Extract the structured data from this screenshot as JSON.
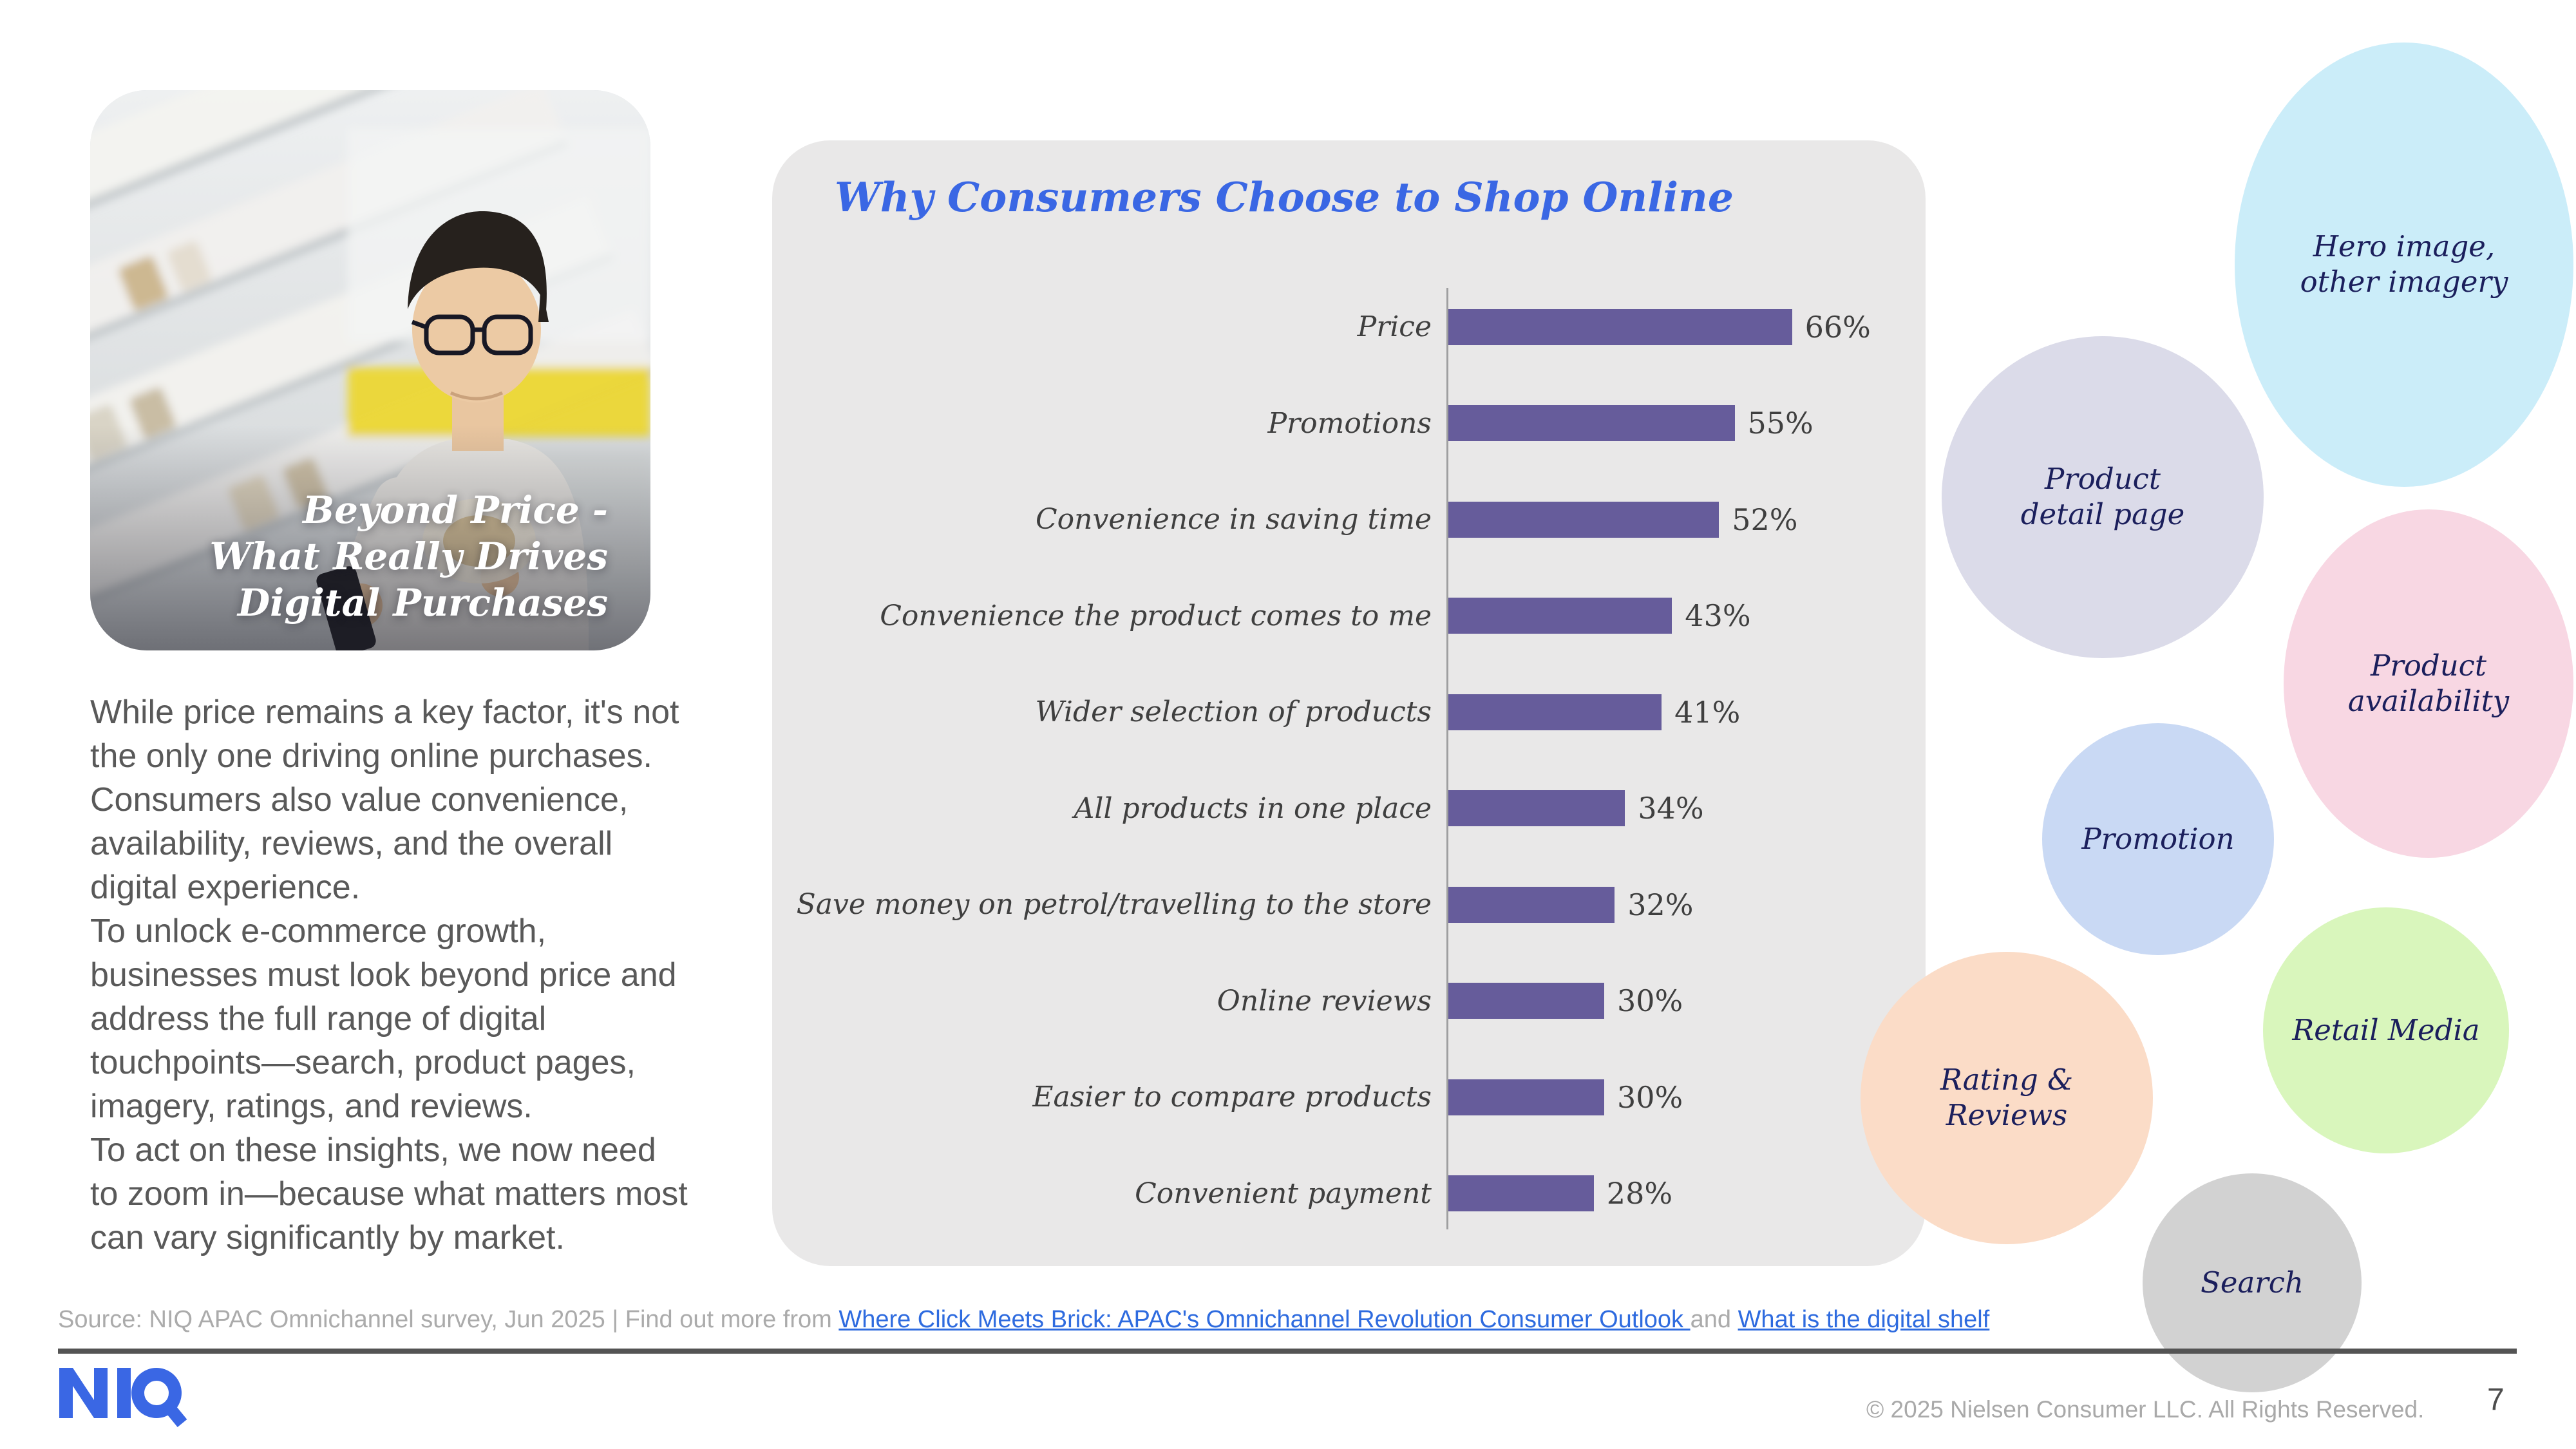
{
  "hero": {
    "title": "Beyond Price -\nWhat Really Drives\nDigital Purchases"
  },
  "intro": {
    "paragraphs": [
      "While price remains a key factor, it's not the only one driving online purchases. Consumers also value convenience, availability, reviews, and the overall digital experience.",
      "To unlock e-commerce growth, businesses must look beyond price and address the full range of digital touchpoints—search, product pages, imagery, ratings, and reviews.",
      "To act on these insights, we now need to zoom in—because what matters most can vary significantly by market."
    ]
  },
  "chart_data": {
    "type": "bar",
    "orientation": "horizontal",
    "title": "Why Consumers Choose to Shop Online",
    "title_color": "#3A67E4",
    "panel_color": "#E9E8E8",
    "bar_color": "#665C9B",
    "unit": "%",
    "xlim": [
      0,
      70
    ],
    "grid": false,
    "legend": false,
    "categories": [
      "Price",
      "Promotions",
      "Convenience in saving time",
      "Convenience the product comes to me",
      "Wider selection of products",
      "All products in one place",
      "Save money on petrol/travelling to the store",
      "Online reviews",
      "Easier to compare products",
      "Convenient payment"
    ],
    "values": [
      66,
      55,
      52,
      43,
      41,
      34,
      32,
      30,
      30,
      28
    ],
    "value_labels": [
      "66%",
      "55%",
      "52%",
      "43%",
      "41%",
      "34%",
      "32%",
      "30%",
      "30%",
      "28%"
    ]
  },
  "bubbles": [
    {
      "name": "hero-imagery",
      "label": "Hero image,\nother imagery",
      "color": "#CBEDF9"
    },
    {
      "name": "product-detail-page",
      "label": "Product\ndetail page",
      "color": "#DBDBE9"
    },
    {
      "name": "product-availability",
      "label": "Product\navailability",
      "color": "#F8D7E3"
    },
    {
      "name": "promotion",
      "label": "Promotion",
      "color": "#C9D9F4"
    },
    {
      "name": "retail-media",
      "label": "Retail Media",
      "color": "#D9F6BC"
    },
    {
      "name": "rating-reviews",
      "label": "Rating &\nReviews",
      "color": "#FBDCC7"
    },
    {
      "name": "search",
      "label": "Search",
      "color": "#D2D2D2"
    }
  ],
  "bubble_text_color": "#1B1F5C",
  "source_line": {
    "prefix": "Source: NIQ APAC Omnichannel survey, Jun 2025 | Find out more from ",
    "link1": "Where Click Meets Brick: APAC's Omnichannel Revolution Consumer Outlook ",
    "conjunction": "and ",
    "link2": "What is the digital shelf",
    "link_color": "#2E6BDF"
  },
  "footer": {
    "logo_text": "NIQ",
    "logo_color": "#3A67E4",
    "copyright": "© 2025 Nielsen Consumer LLC. All Rights Reserved.",
    "page_number": "7"
  }
}
